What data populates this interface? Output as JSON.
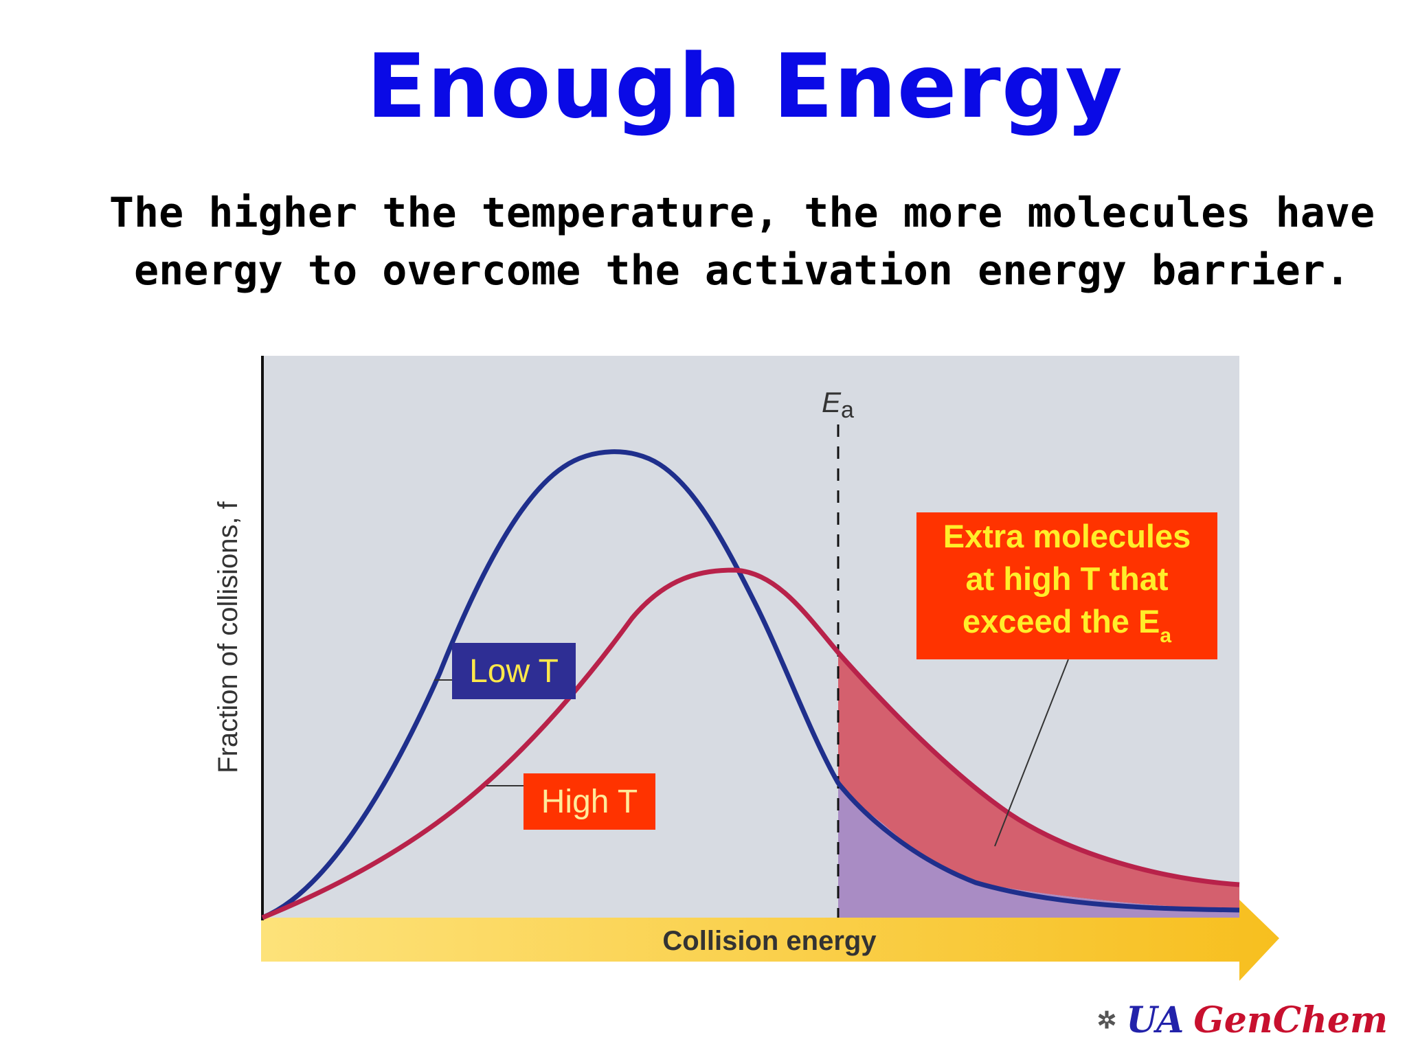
{
  "title": "Enough Energy",
  "subtitle": {
    "line1": "The higher the temperature, the more molecules have",
    "line2": "energy to overcome the activation energy barrier."
  },
  "diagram": {
    "y_axis_label": "Fraction of collisions, f",
    "x_axis_label": "Collision energy",
    "ea_label": "E",
    "ea_subscript": "a",
    "low_t_label": "Low T",
    "high_t_label": "High T",
    "callout": {
      "line1": "Extra molecules",
      "line2": "at high T that",
      "line3": "exceed the E",
      "line3_subscript": "a"
    },
    "colors": {
      "low_curve": "#1f2f8c",
      "high_curve": "#b8224a",
      "high_fill": "#d4606e",
      "low_fill": "#a98cc4",
      "plot_bg": "#d7dbe2",
      "arrow": "#f7c42a"
    }
  },
  "footer": {
    "ua": "UA",
    "genchem": "GenChem",
    "logo_icon": "molecule-icon"
  }
}
